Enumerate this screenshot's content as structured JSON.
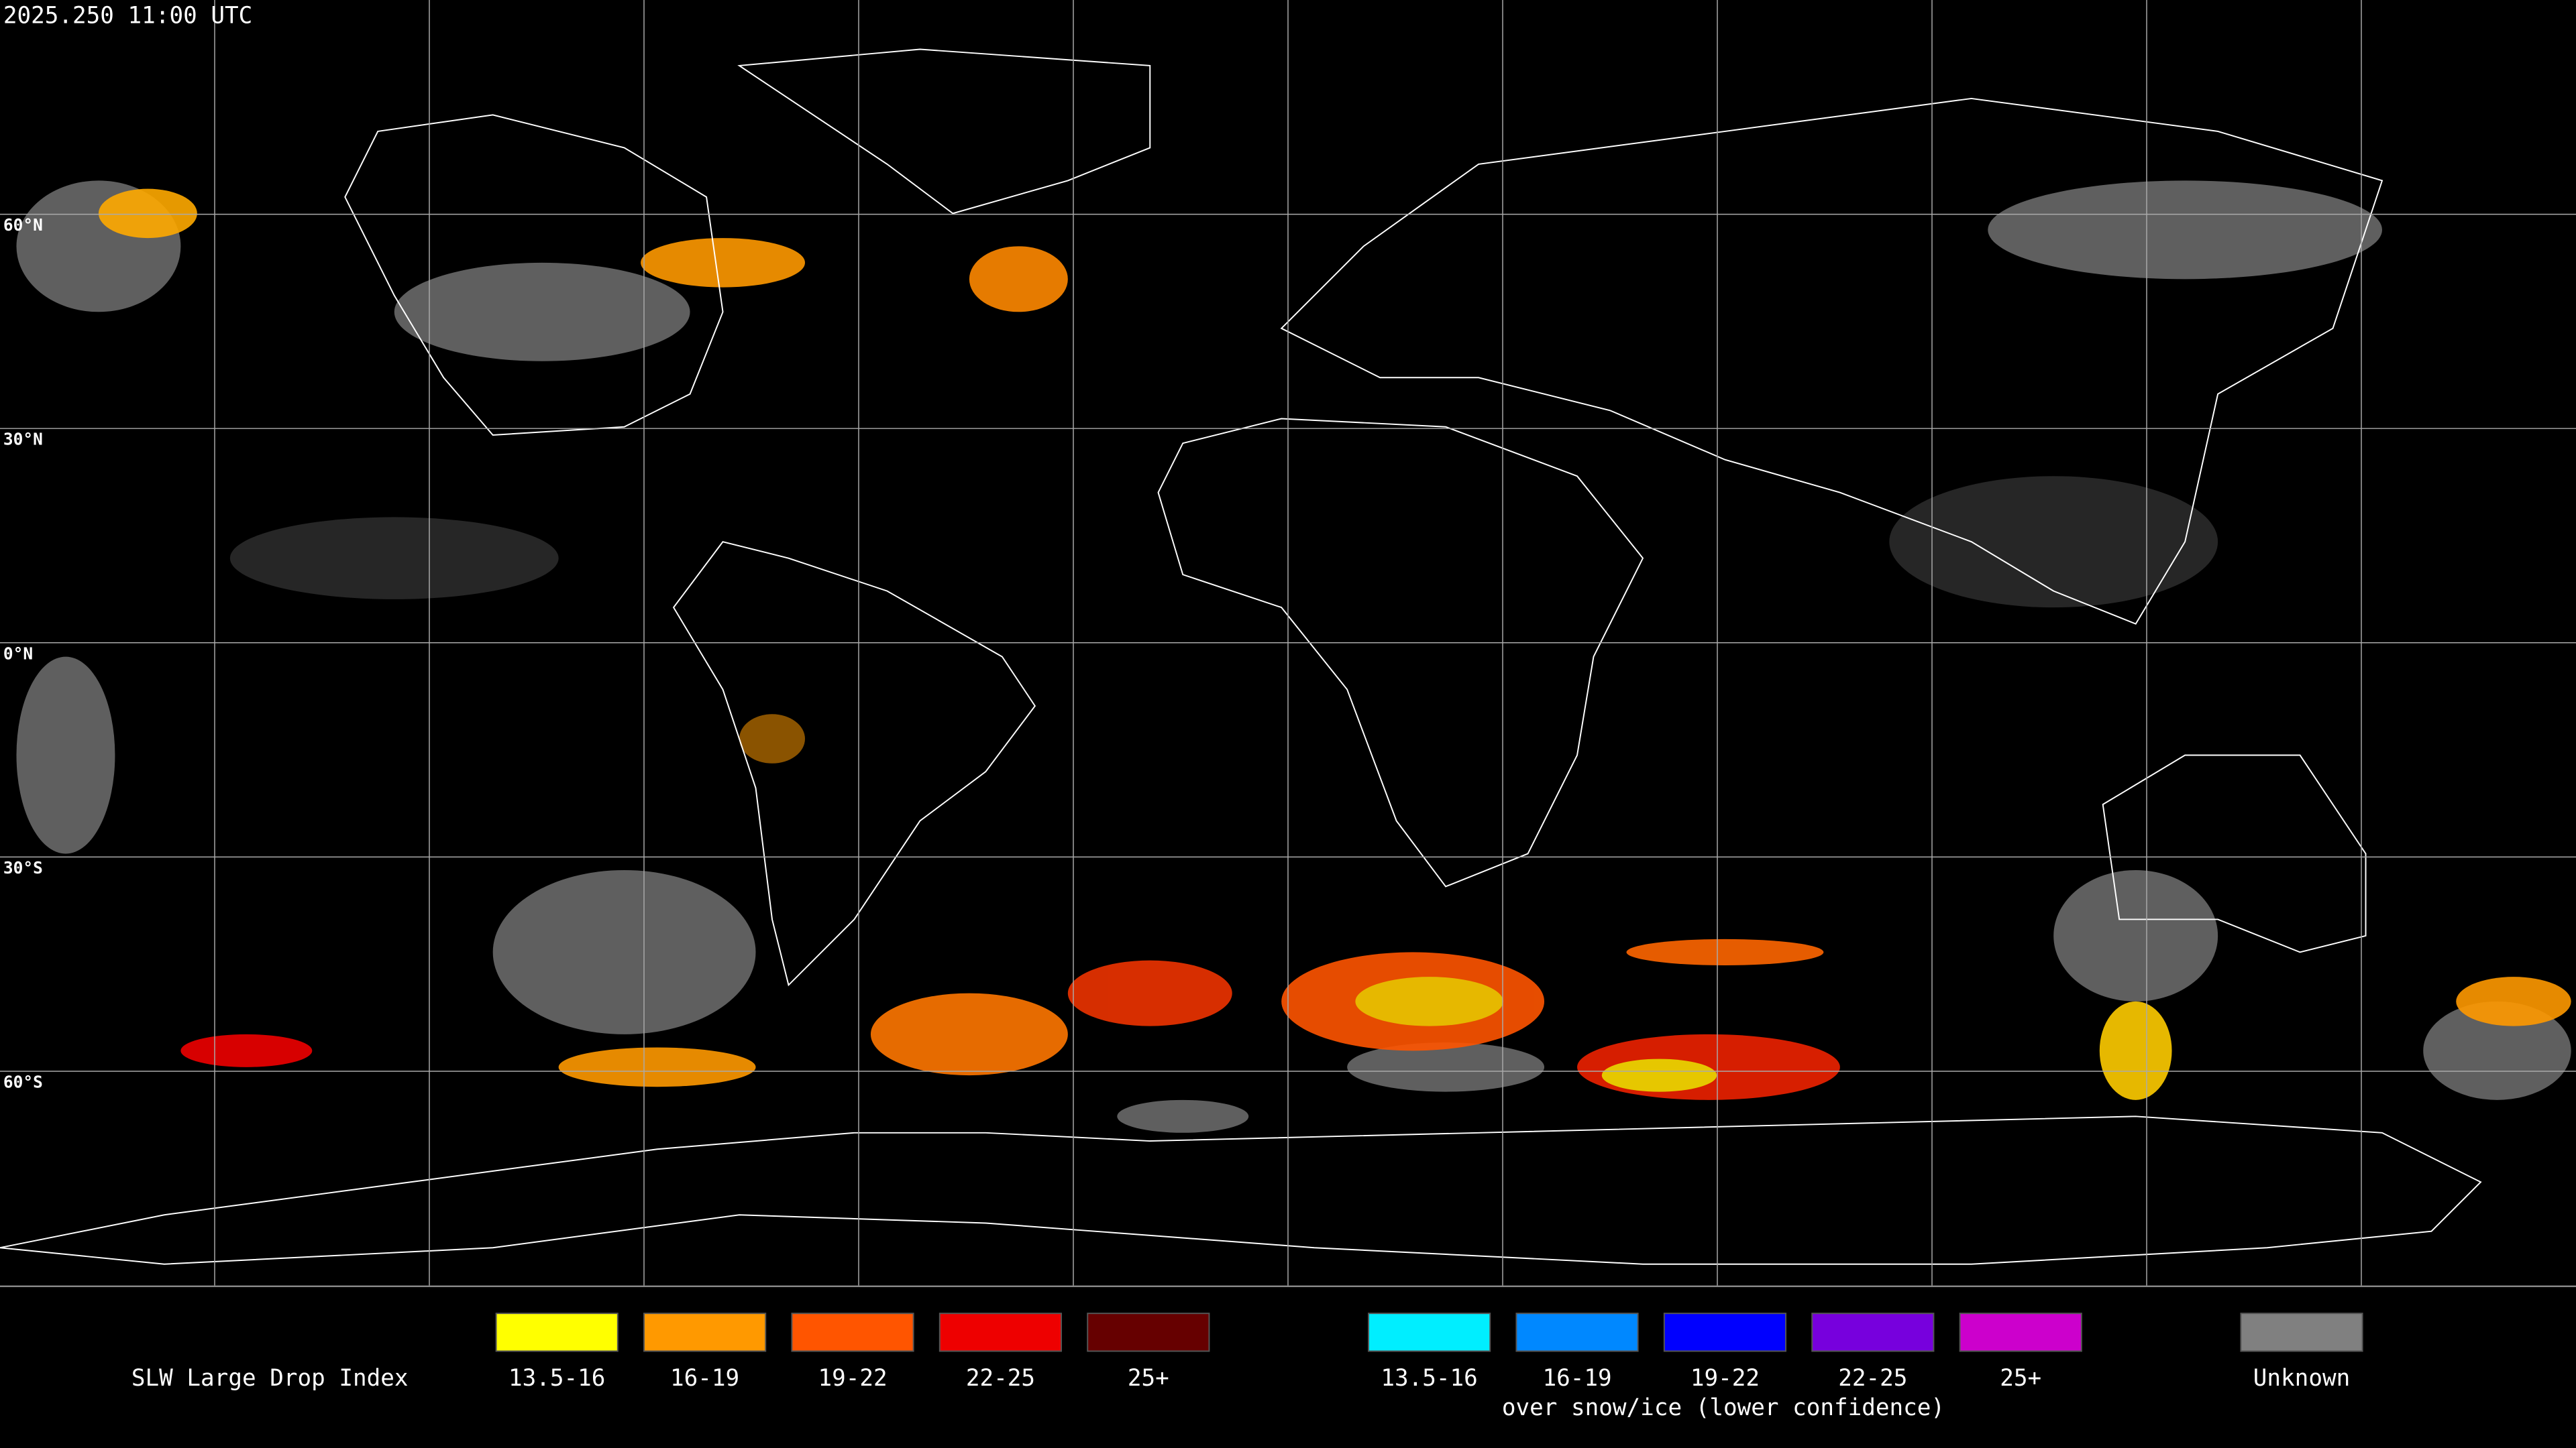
{
  "header": {
    "timestamp": "2025.250 11:00 UTC"
  },
  "latitude_labels": [
    "60°N",
    "30°N",
    "0°N",
    "30°S",
    "60°S"
  ],
  "legend": {
    "title": "SLW Large Drop Index",
    "items": [
      {
        "label": "13.5-16",
        "color": "#ffff00"
      },
      {
        "label": "16-19",
        "color": "#ff9900"
      },
      {
        "label": "19-22",
        "color": "#ff5500"
      },
      {
        "label": "22-25",
        "color": "#ee0000"
      },
      {
        "label": "25+",
        "color": "#660000"
      }
    ],
    "snow_items": [
      {
        "label": "13.5-16",
        "color": "#00eeff"
      },
      {
        "label": "16-19",
        "color": "#0088ff"
      },
      {
        "label": "19-22",
        "color": "#0000ff"
      },
      {
        "label": "22-25",
        "color": "#7700dd"
      },
      {
        "label": "25+",
        "color": "#cc00cc"
      }
    ],
    "snow_caption": "over snow/ice (lower confidence)",
    "unknown": {
      "label": "Unknown",
      "color": "#808080"
    }
  }
}
